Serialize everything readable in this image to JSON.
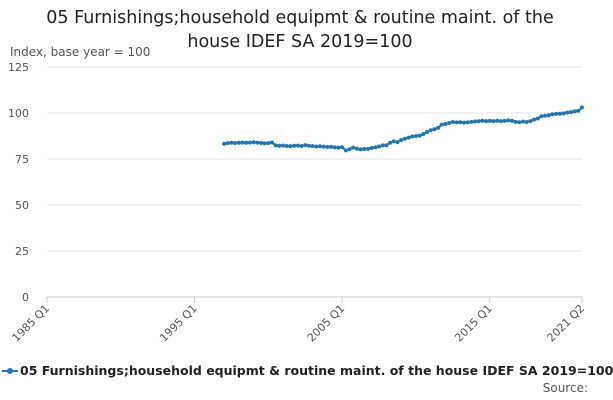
{
  "chart_data": {
    "type": "line",
    "title_lines": [
      "05 Furnishings;household equipmt & routine maint. of the",
      "house IDEF SA 2019=100"
    ],
    "ylabel": "Index, base year = 100",
    "xlabel": "",
    "ylim": [
      0,
      125
    ],
    "yticks": [
      0,
      25,
      50,
      75,
      100,
      125
    ],
    "xticks": [
      {
        "label": "1985 Q1",
        "t": 1985.0
      },
      {
        "label": "1995 Q1",
        "t": 1995.0
      },
      {
        "label": "2005 Q1",
        "t": 2005.0
      },
      {
        "label": "2015 Q1",
        "t": 2015.0
      },
      {
        "label": "2021 Q2",
        "t": 2021.25
      }
    ],
    "xlim": [
      1985.0,
      2021.25
    ],
    "grid": true,
    "legend_position": "bottom-left",
    "series": [
      {
        "name": "05 Furnishings;household equipmt & routine maint. of the house IDEF SA 2019=100",
        "color": "#1f77b4",
        "points": [
          [
            1997.0,
            83.3
          ],
          [
            1997.25,
            83.6
          ],
          [
            1997.5,
            83.8
          ],
          [
            1997.75,
            83.7
          ],
          [
            1998.0,
            83.8
          ],
          [
            1998.25,
            83.9
          ],
          [
            1998.5,
            83.8
          ],
          [
            1998.75,
            84.0
          ],
          [
            1999.0,
            84.1
          ],
          [
            1999.25,
            83.9
          ],
          [
            1999.5,
            83.7
          ],
          [
            1999.75,
            83.5
          ],
          [
            2000.0,
            83.6
          ],
          [
            2000.25,
            84.0
          ],
          [
            2000.5,
            82.4
          ],
          [
            2000.75,
            82.2
          ],
          [
            2001.0,
            82.3
          ],
          [
            2001.25,
            82.1
          ],
          [
            2001.5,
            82.0
          ],
          [
            2001.75,
            82.2
          ],
          [
            2002.0,
            82.3
          ],
          [
            2002.25,
            82.1
          ],
          [
            2002.5,
            82.5
          ],
          [
            2002.75,
            82.2
          ],
          [
            2003.0,
            82.0
          ],
          [
            2003.25,
            81.8
          ],
          [
            2003.5,
            81.9
          ],
          [
            2003.75,
            81.7
          ],
          [
            2004.0,
            81.5
          ],
          [
            2004.25,
            81.6
          ],
          [
            2004.5,
            81.3
          ],
          [
            2004.75,
            81.2
          ],
          [
            2005.0,
            81.4
          ],
          [
            2005.25,
            79.7
          ],
          [
            2005.5,
            80.3
          ],
          [
            2005.75,
            81.2
          ],
          [
            2006.0,
            80.6
          ],
          [
            2006.25,
            80.2
          ],
          [
            2006.5,
            80.4
          ],
          [
            2006.75,
            80.5
          ],
          [
            2007.0,
            81.0
          ],
          [
            2007.25,
            81.3
          ],
          [
            2007.5,
            81.8
          ],
          [
            2007.75,
            82.4
          ],
          [
            2008.0,
            82.5
          ],
          [
            2008.25,
            83.8
          ],
          [
            2008.5,
            84.6
          ],
          [
            2008.75,
            84.2
          ],
          [
            2009.0,
            85.3
          ],
          [
            2009.25,
            86.0
          ],
          [
            2009.5,
            86.6
          ],
          [
            2009.75,
            87.2
          ],
          [
            2010.0,
            87.5
          ],
          [
            2010.25,
            87.7
          ],
          [
            2010.5,
            88.6
          ],
          [
            2010.75,
            89.7
          ],
          [
            2011.0,
            90.6
          ],
          [
            2011.25,
            91.2
          ],
          [
            2011.5,
            91.9
          ],
          [
            2011.75,
            93.7
          ],
          [
            2012.0,
            94.0
          ],
          [
            2012.25,
            94.6
          ],
          [
            2012.5,
            95.1
          ],
          [
            2012.75,
            94.9
          ],
          [
            2013.0,
            95.0
          ],
          [
            2013.25,
            94.8
          ],
          [
            2013.5,
            94.9
          ],
          [
            2013.75,
            95.2
          ],
          [
            2014.0,
            95.4
          ],
          [
            2014.25,
            95.5
          ],
          [
            2014.5,
            95.8
          ],
          [
            2014.75,
            95.6
          ],
          [
            2015.0,
            95.7
          ],
          [
            2015.25,
            95.6
          ],
          [
            2015.5,
            95.8
          ],
          [
            2015.75,
            95.6
          ],
          [
            2016.0,
            95.7
          ],
          [
            2016.25,
            96.0
          ],
          [
            2016.5,
            95.8
          ],
          [
            2016.75,
            95.2
          ],
          [
            2017.0,
            95.0
          ],
          [
            2017.25,
            95.3
          ],
          [
            2017.5,
            95.1
          ],
          [
            2017.75,
            95.6
          ],
          [
            2018.0,
            96.4
          ],
          [
            2018.25,
            97.0
          ],
          [
            2018.5,
            98.2
          ],
          [
            2018.75,
            98.5
          ],
          [
            2019.0,
            98.8
          ],
          [
            2019.25,
            99.3
          ],
          [
            2019.5,
            99.5
          ],
          [
            2019.75,
            99.6
          ],
          [
            2020.0,
            99.8
          ],
          [
            2020.25,
            100.2
          ],
          [
            2020.5,
            100.5
          ],
          [
            2020.75,
            100.9
          ],
          [
            2021.0,
            101.2
          ],
          [
            2021.25,
            103.0
          ]
        ]
      }
    ]
  },
  "source_label": "Source:"
}
